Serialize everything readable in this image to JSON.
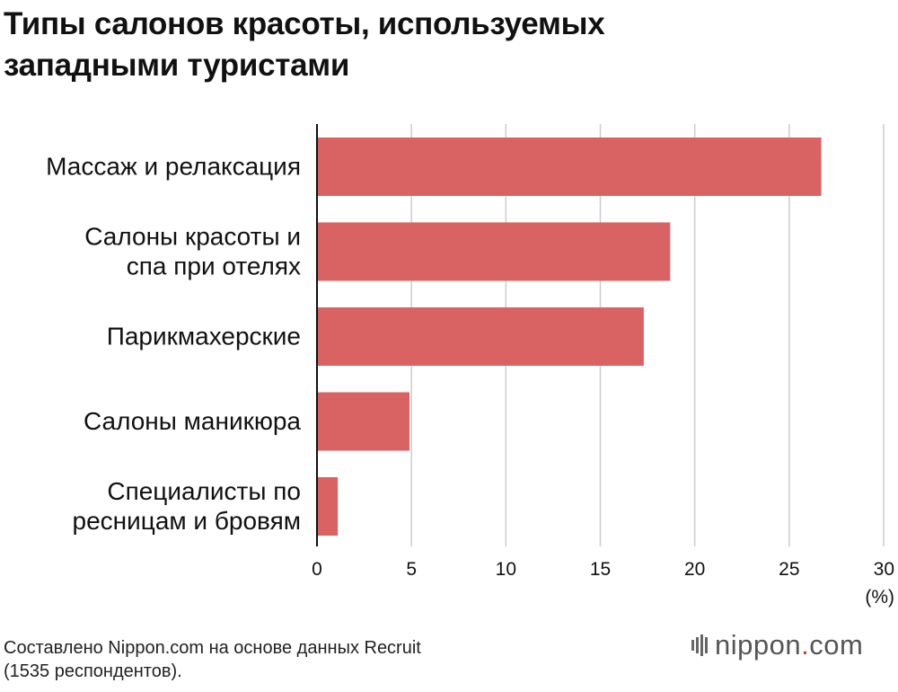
{
  "title_lines": [
    "Типы салонов красоты, используемых",
    "западными туристами"
  ],
  "source_lines": [
    "Составлено Nippon.com на основе данных Recruit",
    "(1535 респондентов)."
  ],
  "logo": {
    "name": "nippon",
    "dot": ".",
    "suffix": "com"
  },
  "colors": {
    "bar": "#d96263",
    "grid": "#cccccc",
    "axis": "#111111"
  },
  "chart_data": {
    "type": "bar",
    "orientation": "horizontal",
    "categories": [
      [
        "Массаж и релаксация"
      ],
      [
        "Салоны красоты и",
        "спа при отелях"
      ],
      [
        "Парикмахерские"
      ],
      [
        "Салоны маникюра"
      ],
      [
        "Специалисты по",
        "ресницам и бровям"
      ]
    ],
    "values": [
      26.7,
      18.7,
      17.3,
      4.9,
      1.1
    ],
    "xlim": [
      0,
      30
    ],
    "xticks": [
      0,
      5,
      10,
      15,
      20,
      25,
      30
    ],
    "xunit": "(%)",
    "grid": true
  }
}
